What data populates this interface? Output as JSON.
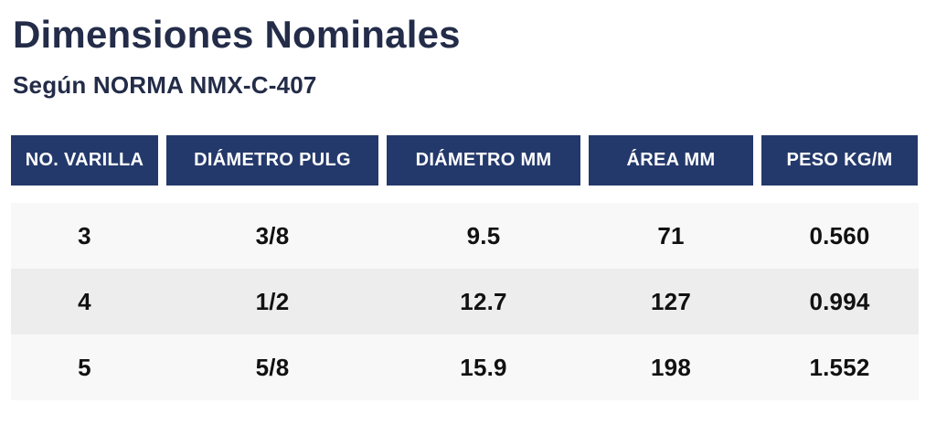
{
  "chart_data": {
    "type": "table",
    "title": "Dimensiones Nominales",
    "subtitle": "Según NORMA NMX-C-407",
    "columns": [
      "NO. VARILLA",
      "DIÁMETRO PULG",
      "DIÁMETRO MM",
      "ÁREA MM",
      "PESO KG/M"
    ],
    "rows": [
      [
        "3",
        "3/8",
        "9.5",
        "71",
        "0.560"
      ],
      [
        "4",
        "1/2",
        "12.7",
        "127",
        "0.994"
      ],
      [
        "5",
        "5/8",
        "15.9",
        "198",
        "1.552"
      ]
    ]
  },
  "colors": {
    "header_bg": "#24396B",
    "header_text": "#FFFFFF",
    "title_text": "#232C48",
    "row_bg": "#F8F8F8",
    "row_alt_bg": "#EDEDED",
    "cell_text": "#111111",
    "page_bg": "#FFFFFF"
  }
}
